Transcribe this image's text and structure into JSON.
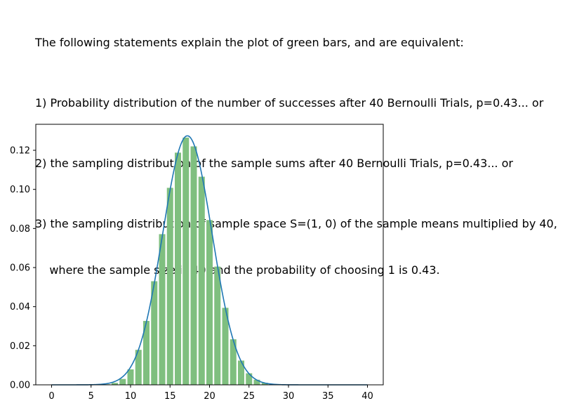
{
  "title_lines": [
    "The following statements explain the plot of green bars, and are equivalent:",
    "1) Probability distribution of the number of successes after 40 Bernoulli Trials, p=0.43... or",
    "2) the sampling distribution of the sample sums after 40 Bernoulli Trials, p=0.43... or",
    "3) the sampling distribution of sample space S=(1, 0) of the sample means multiplied by 40,",
    "    where the sample size is 40 and the probability of choosing 1 is 0.43."
  ],
  "chart_data": {
    "type": "bar",
    "n": 40,
    "p": 0.43,
    "x": [
      0,
      1,
      2,
      3,
      4,
      5,
      6,
      7,
      8,
      9,
      10,
      11,
      12,
      13,
      14,
      15,
      16,
      17,
      18,
      19,
      20,
      21,
      22,
      23,
      24,
      25,
      26,
      27,
      28,
      29,
      30,
      31,
      32,
      33,
      34,
      35,
      36,
      37,
      38,
      39,
      40
    ],
    "values": [
      0.0,
      0.0,
      0.0,
      0.0,
      0.0,
      1e-05,
      6e-05,
      0.00028,
      0.00099,
      0.003,
      0.0079,
      0.0179,
      0.0327,
      0.053,
      0.0771,
      0.1008,
      0.1188,
      0.1265,
      0.122,
      0.1065,
      0.0843,
      0.0605,
      0.0394,
      0.0233,
      0.0124,
      0.0059,
      0.0026,
      0.001,
      0.00035,
      0.00011,
      3e-05,
      0.0,
      0.0,
      0.0,
      0.0,
      0.0,
      0.0,
      0.0,
      0.0,
      0.0,
      0.0
    ],
    "curve": "normal approximation, mean 17.2, sd 3.131",
    "bar_color": "#7fbf7f",
    "line_color": "#1f77b4",
    "xticks": [
      "0",
      "5",
      "10",
      "15",
      "20",
      "25",
      "30",
      "35",
      "40"
    ],
    "yticks": [
      "0.00",
      "0.02",
      "0.04",
      "0.06",
      "0.08",
      "0.10",
      "0.12"
    ],
    "xlim": [
      -2,
      42
    ],
    "ylim": [
      0,
      0.1333
    ],
    "xlabel": "",
    "ylabel": "",
    "grid": false
  }
}
